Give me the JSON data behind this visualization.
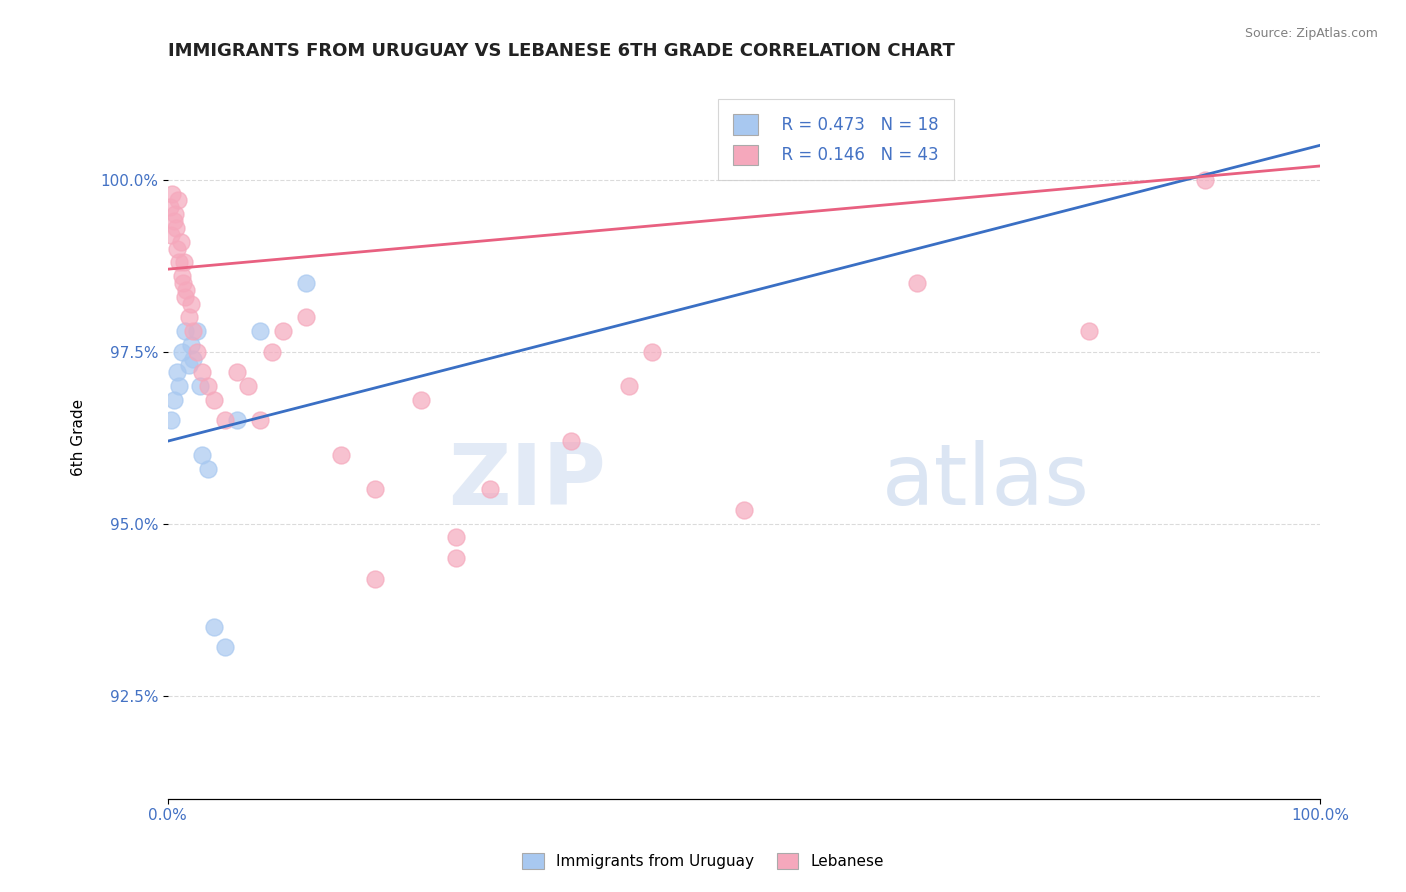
{
  "title": "IMMIGRANTS FROM URUGUAY VS LEBANESE 6TH GRADE CORRELATION CHART",
  "source": "Source: ZipAtlas.com",
  "ylabel": "6th Grade",
  "xlim": [
    0.0,
    100.0
  ],
  "ylim": [
    91.0,
    101.5
  ],
  "yticks": [
    92.5,
    95.0,
    97.5,
    100.0
  ],
  "ytick_labels": [
    "92.5%",
    "95.0%",
    "97.5%",
    "100.0%"
  ],
  "xtick_labels": [
    "0.0%",
    "100.0%"
  ],
  "legend_label1": "Immigrants from Uruguay",
  "legend_label2": "Lebanese",
  "r1": 0.473,
  "n1": 18,
  "r2": 0.146,
  "n2": 43,
  "color1": "#a8c8f0",
  "color2": "#f5a8bc",
  "trendline_color1": "#3a6fc4",
  "trendline_color2": "#e86080",
  "watermark_zip": "ZIP",
  "watermark_atlas": "atlas",
  "uruguay_x": [
    0.3,
    0.5,
    0.8,
    1.0,
    1.2,
    1.5,
    1.8,
    2.0,
    2.2,
    2.5,
    3.0,
    3.5,
    4.0,
    5.0,
    6.0,
    8.0,
    12.0,
    2.8
  ],
  "uruguay_y": [
    96.5,
    96.8,
    97.2,
    97.0,
    97.5,
    97.8,
    97.3,
    97.6,
    97.4,
    97.8,
    96.0,
    95.8,
    93.5,
    93.2,
    96.5,
    97.8,
    98.5,
    97.0
  ],
  "lebanese_x": [
    0.2,
    0.3,
    0.4,
    0.5,
    0.6,
    0.7,
    0.8,
    0.9,
    1.0,
    1.1,
    1.2,
    1.3,
    1.4,
    1.5,
    1.6,
    1.8,
    2.0,
    2.2,
    2.5,
    3.0,
    3.5,
    4.0,
    5.0,
    6.0,
    7.0,
    8.0,
    9.0,
    10.0,
    12.0,
    15.0,
    18.0,
    22.0,
    25.0,
    28.0,
    35.0,
    40.0,
    18.0,
    25.0,
    42.0,
    50.0,
    65.0,
    80.0,
    90.0
  ],
  "lebanese_y": [
    99.6,
    99.2,
    99.8,
    99.4,
    99.5,
    99.3,
    99.0,
    99.7,
    98.8,
    99.1,
    98.6,
    98.5,
    98.8,
    98.3,
    98.4,
    98.0,
    98.2,
    97.8,
    97.5,
    97.2,
    97.0,
    96.8,
    96.5,
    97.2,
    97.0,
    96.5,
    97.5,
    97.8,
    98.0,
    96.0,
    95.5,
    96.8,
    94.8,
    95.5,
    96.2,
    97.0,
    94.2,
    94.5,
    97.5,
    95.2,
    98.5,
    97.8,
    100.0
  ],
  "trendline_x_start": 0.0,
  "trendline_x_end": 100.0,
  "blue_line_y_at_0": 96.2,
  "blue_line_y_at_100": 100.5,
  "pink_line_y_at_0": 98.7,
  "pink_line_y_at_100": 100.2
}
